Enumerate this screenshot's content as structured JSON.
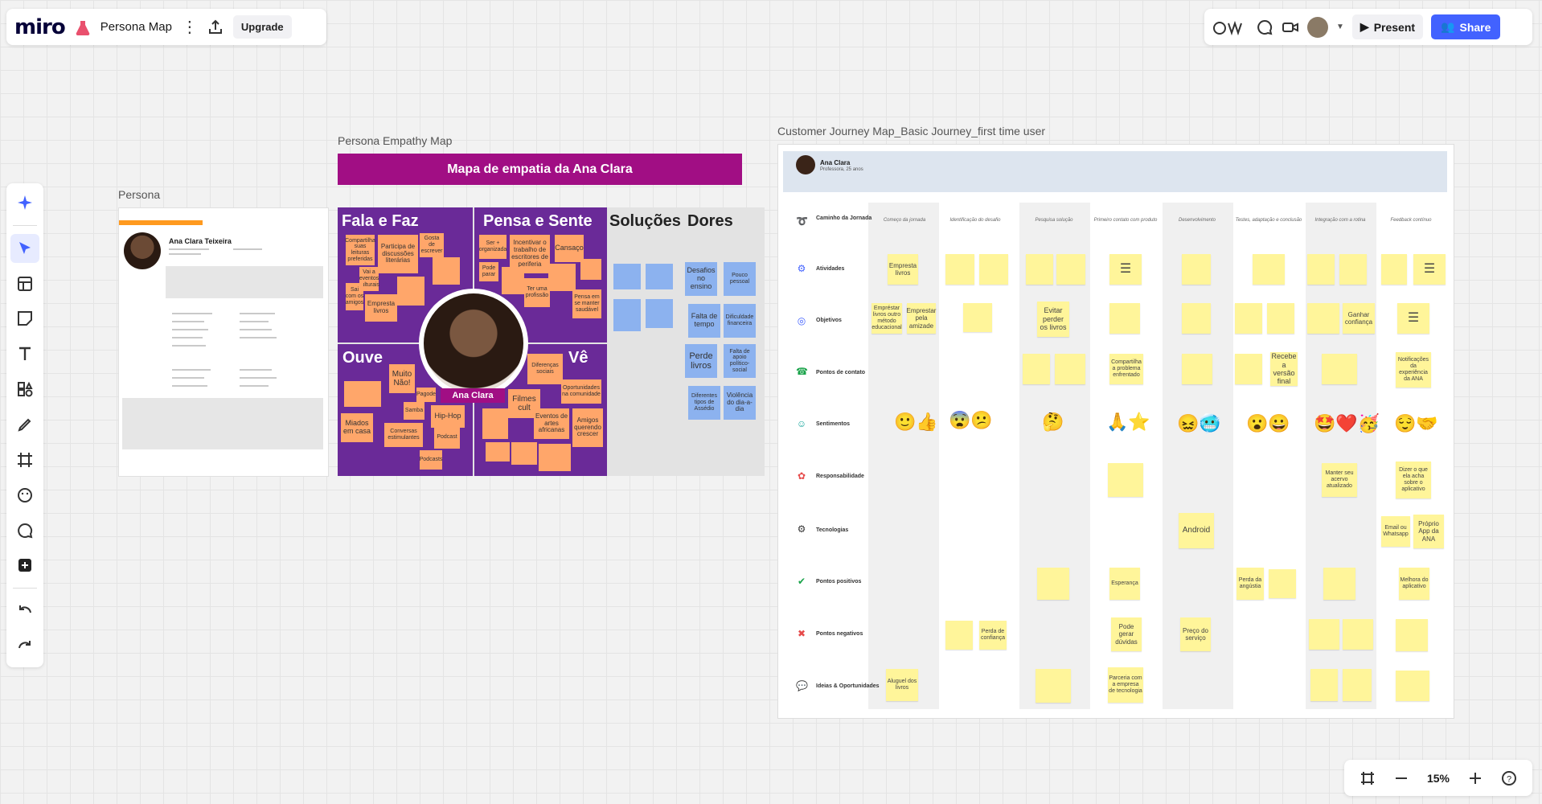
{
  "app": {
    "logo": "miro",
    "board_title": "Persona Map",
    "upgrade_label": "Upgrade",
    "present_label": "Present",
    "share_label": "Share",
    "zoom": "15%"
  },
  "frames": {
    "persona": "Persona",
    "empathy": "Persona Empathy Map",
    "journey": "Customer Journey Map_Basic Journey_first time user"
  },
  "persona": {
    "name": "Ana Clara Teixeira"
  },
  "empathy": {
    "header": "Mapa de empatia da Ana Clara",
    "center_name": "Ana Clara",
    "quadrants": [
      "Fala e Faz",
      "Pensa e Sente",
      "Ouve",
      "Vê"
    ],
    "columns": [
      "Soluções",
      "Dores"
    ],
    "fala_stickies": [
      "Compartilha suas leituras preferidas",
      "Participa de discussões literárias",
      "Gosta de escrever",
      "Vai a eventos culturais",
      "Empresta livros",
      "Sai com os amigos"
    ],
    "pensa_stickies": [
      "Ser + organizada",
      "Incentivar o trabalho de escritores de periferia",
      "Cansaço",
      "Pode parar",
      "Ter uma profissão",
      "Pensa em se manter saudável"
    ],
    "ouve_stickies": [
      "Muito Não!",
      "Podcasts",
      "Samba",
      "Hip-Hop",
      "Conversas estimulantes",
      "Miados em casa",
      "Pagode",
      "Podcast"
    ],
    "ve_stickies": [
      "Filmes cult",
      "Eventos de artes africanas",
      "Diferenças sociais",
      "Oportunidades na comunidade",
      "Amigos querendo crescer"
    ],
    "dores_stickies": [
      "Desafios no ensino",
      "Falta de tempo",
      "Perde livros",
      "Diferentes tipos de Assédio",
      "Pouco pessoal",
      "Dificuldade financeira",
      "Falta de apoio político-social",
      "Violência do dia-a-dia"
    ]
  },
  "journey": {
    "person_name": "Ana Clara",
    "person_sub": "Professora, 25 anos",
    "phases": [
      "Começo da jornada",
      "Identificação do desafio",
      "Pesquisa solução",
      "Primeiro contato com produto",
      "Desenvolvimento",
      "Testes, adaptação e conclusão",
      "Integração com a rotina",
      "Feedback contínuo"
    ],
    "rows": [
      "Caminho da Jornada",
      "Atividades",
      "Objetivos",
      "Pontos de contato",
      "Sentimentos",
      "Responsabilidade",
      "Tecnologias",
      "Pontos positivos",
      "Pontos negativos",
      "Ideias & Oportunidades"
    ],
    "notes": {
      "atividades": [
        "Empresta livros"
      ],
      "objetivos": [
        "Empréstar livros outro método educacional",
        "Emprestar pela amizade",
        "Evitar perder os livros",
        "Ganhar confiança"
      ],
      "contato": [
        "Compartilha a problema enfrentado",
        "Recebe a versão final",
        "Notificações da experiência da ANA"
      ],
      "responsabilidade": [
        "Manter seu acervo atualizado",
        "Dizer o que ela acha sobre o aplicativo"
      ],
      "tecnologias": [
        "Android",
        "Email ou Whatsapp",
        "Próprio App da ANA"
      ],
      "positivos": [
        "Esperança",
        "Perda da angústia",
        "Melhora do aplicativo"
      ],
      "negativos": [
        "Perda de confiança",
        "Pode gerar dúvidas",
        "Preço do serviço"
      ],
      "ideias": [
        "Aluguel dos livros",
        "Parceria com a empresa de tecnologia"
      ]
    },
    "emojis": [
      "🙂👍",
      "😨😕",
      "🤔",
      "🙏⭐",
      "😖🥶",
      "😮😀",
      "🤩❤️🥳",
      "😌🤝"
    ]
  }
}
